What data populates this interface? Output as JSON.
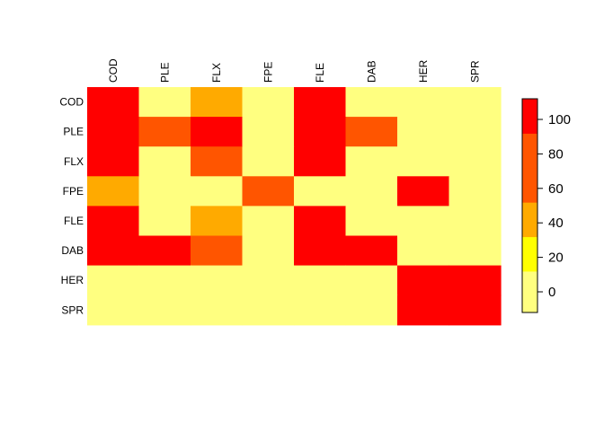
{
  "chart_data": {
    "type": "heatmap",
    "rows": [
      "COD",
      "PLE",
      "FLX",
      "FPE",
      "FLE",
      "DAB",
      "HER",
      "SPR"
    ],
    "columns": [
      "COD",
      "PLE",
      "FLX",
      "FPE",
      "FLE",
      "DAB",
      "HER",
      "SPR"
    ],
    "values": [
      [
        110,
        10,
        40,
        0,
        110,
        10,
        0,
        0
      ],
      [
        110,
        70,
        110,
        0,
        110,
        70,
        0,
        0
      ],
      [
        110,
        10,
        70,
        0,
        110,
        10,
        0,
        0
      ],
      [
        50,
        0,
        0,
        70,
        0,
        0,
        110,
        0
      ],
      [
        110,
        0,
        40,
        0,
        110,
        0,
        0,
        0
      ],
      [
        110,
        110,
        70,
        0,
        110,
        110,
        0,
        0
      ],
      [
        0,
        0,
        0,
        0,
        0,
        0,
        110,
        110
      ],
      [
        0,
        0,
        0,
        0,
        0,
        0,
        110,
        110
      ]
    ],
    "color_scale": {
      "breaks": [
        -12,
        12,
        32,
        52,
        72,
        92,
        112
      ],
      "colors": [
        "#FFFF80",
        "#FFFF00",
        "#FFAA00",
        "#FF5500",
        "#FF5500",
        "#FF0000"
      ],
      "ticks": [
        0,
        20,
        40,
        60,
        80,
        100
      ]
    },
    "title": "",
    "xlabel": "",
    "ylabel": "",
    "legend": "right"
  }
}
